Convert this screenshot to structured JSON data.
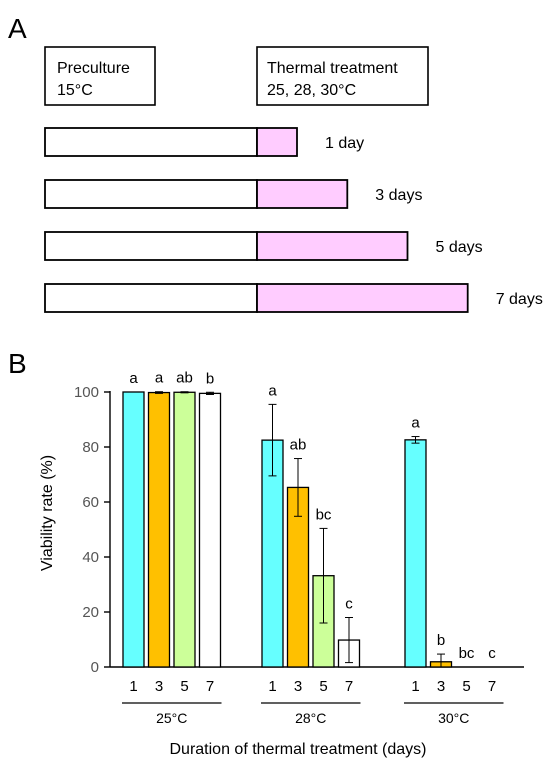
{
  "panel_a": {
    "letter": "A",
    "preculture_box": {
      "line1": "Preculture",
      "line2": "15°C"
    },
    "thermal_box": {
      "line1": "Thermal treatment",
      "line2": "25, 28, 30°C"
    },
    "timelines": [
      {
        "label": "1 day",
        "days": 1
      },
      {
        "label": "3 days",
        "days": 3
      },
      {
        "label": "5 days",
        "days": 5
      },
      {
        "label": "7 days",
        "days": 7
      }
    ],
    "colors": {
      "preculture": "#ffffff",
      "treatment": "#ffccff"
    }
  },
  "chart_data": {
    "type": "bar",
    "panel_letter": "B",
    "ylabel": "Viability rate (%)",
    "xlabel": "Duration of thermal treatment (days)",
    "ylim": [
      0,
      100
    ],
    "yticks": [
      0,
      20,
      40,
      60,
      80,
      100
    ],
    "grid": false,
    "duration_labels": [
      "1",
      "3",
      "5",
      "7"
    ],
    "bar_colors": [
      "#66ffff",
      "#ffc000",
      "#ccff99",
      "#ffffff"
    ],
    "groups": [
      {
        "label": "25°C",
        "values": [
          100,
          99.8,
          99.9,
          99.5
        ],
        "errors": [
          0,
          0.3,
          0.2,
          0.4
        ],
        "letters": [
          "a",
          "a",
          "ab",
          "b"
        ]
      },
      {
        "label": "28°C",
        "values": [
          82.5,
          65.3,
          33.2,
          9.8
        ],
        "errors": [
          13,
          10.5,
          17.2,
          8.2
        ],
        "letters": [
          "a",
          "ab",
          "bc",
          "c"
        ]
      },
      {
        "label": "30°C",
        "values": [
          82.6,
          1.9,
          0,
          0
        ],
        "errors": [
          1.2,
          2.8,
          0,
          0
        ],
        "letters": [
          "a",
          "b",
          "bc",
          "c"
        ]
      }
    ]
  }
}
